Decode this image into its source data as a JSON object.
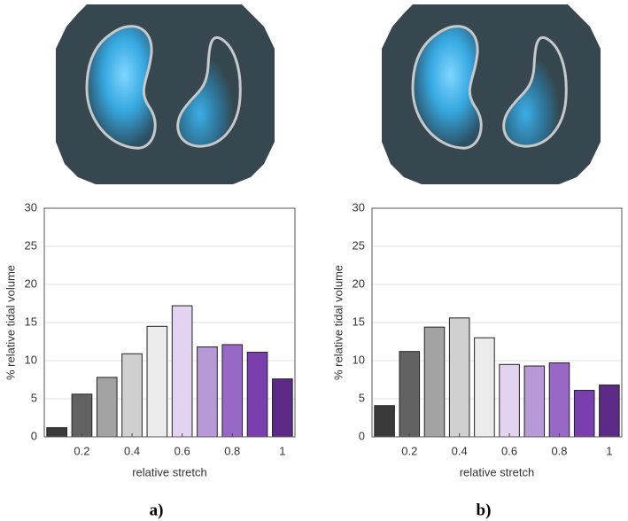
{
  "chart_data": [
    {
      "type": "bar",
      "caption": "a)",
      "xlabel": "relative stretch",
      "ylabel": "% relative tidal volume",
      "x": [
        0.1,
        0.2,
        0.3,
        0.4,
        0.5,
        0.6,
        0.7,
        0.8,
        0.9,
        1.0
      ],
      "values": [
        1.2,
        5.6,
        7.8,
        10.9,
        14.5,
        17.2,
        11.8,
        12.1,
        11.1,
        7.6
      ],
      "colors": [
        "#3a3a3a",
        "#626262",
        "#a3a3a3",
        "#d0d0d0",
        "#ebebeb",
        "#e2d3f0",
        "#b799d8",
        "#9868c6",
        "#7a3eae",
        "#5d2a88"
      ],
      "xlim": [
        0.05,
        1.05
      ],
      "xticks": [
        0.2,
        0.4,
        0.6,
        0.8,
        1
      ],
      "ylim": [
        0,
        30
      ],
      "yticks": [
        0,
        5,
        10,
        15,
        20,
        25,
        30
      ],
      "grid": true
    },
    {
      "type": "bar",
      "caption": "b)",
      "xlabel": "relative stretch",
      "ylabel": "% relative tidal volume",
      "x": [
        0.1,
        0.2,
        0.3,
        0.4,
        0.5,
        0.6,
        0.7,
        0.8,
        0.9,
        1.0
      ],
      "values": [
        4.1,
        11.2,
        14.4,
        15.6,
        13.0,
        9.5,
        9.3,
        9.7,
        6.1,
        6.8
      ],
      "colors": [
        "#3a3a3a",
        "#626262",
        "#a3a3a3",
        "#d0d0d0",
        "#ebebeb",
        "#e2d3f0",
        "#b799d8",
        "#9868c6",
        "#7a3eae",
        "#5d2a88"
      ],
      "xlim": [
        0.05,
        1.05
      ],
      "xticks": [
        0.2,
        0.4,
        0.6,
        0.8,
        1
      ],
      "ylim": [
        0,
        30
      ],
      "yticks": [
        0,
        5,
        10,
        15,
        20,
        25,
        30
      ],
      "grid": true
    }
  ]
}
